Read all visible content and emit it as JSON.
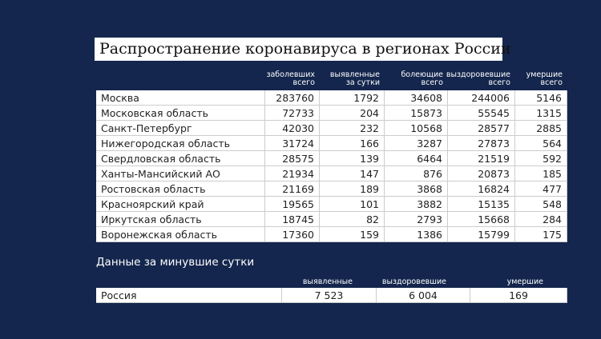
{
  "title": "Распространение коронавируса в регионах России",
  "table": {
    "headers": [
      "заболевших\nвсего",
      "выявленные\nза сутки",
      "болеющие\nвсего",
      "выздоровевшие\nвсего",
      "умершие\nвсего"
    ],
    "rows": [
      [
        "Москва",
        283760,
        1792,
        34608,
        244006,
        5146
      ],
      [
        "Московская область",
        72733,
        204,
        15873,
        55545,
        1315
      ],
      [
        "Санкт-Петербург",
        42030,
        232,
        10568,
        28577,
        2885
      ],
      [
        "Нижегородская область",
        31724,
        166,
        3287,
        27873,
        564
      ],
      [
        "Свердловская область",
        28575,
        139,
        6464,
        21519,
        592
      ],
      [
        "Ханты-Мансийский АО",
        21934,
        147,
        876,
        20873,
        185
      ],
      [
        "Ростовская область",
        21169,
        189,
        3868,
        16824,
        477
      ],
      [
        "Красноярский край",
        19565,
        101,
        3882,
        15135,
        548
      ],
      [
        "Иркутская область",
        18745,
        82,
        2793,
        15668,
        284
      ],
      [
        "Воронежская область",
        17360,
        159,
        1386,
        15799,
        175
      ]
    ]
  },
  "summary": {
    "title": "Данные за минувшие сутки",
    "headers": [
      "выявленные",
      "выздоровевшие",
      "умершие"
    ],
    "row": [
      "Россия",
      "7 523",
      "6 004",
      "169"
    ]
  }
}
